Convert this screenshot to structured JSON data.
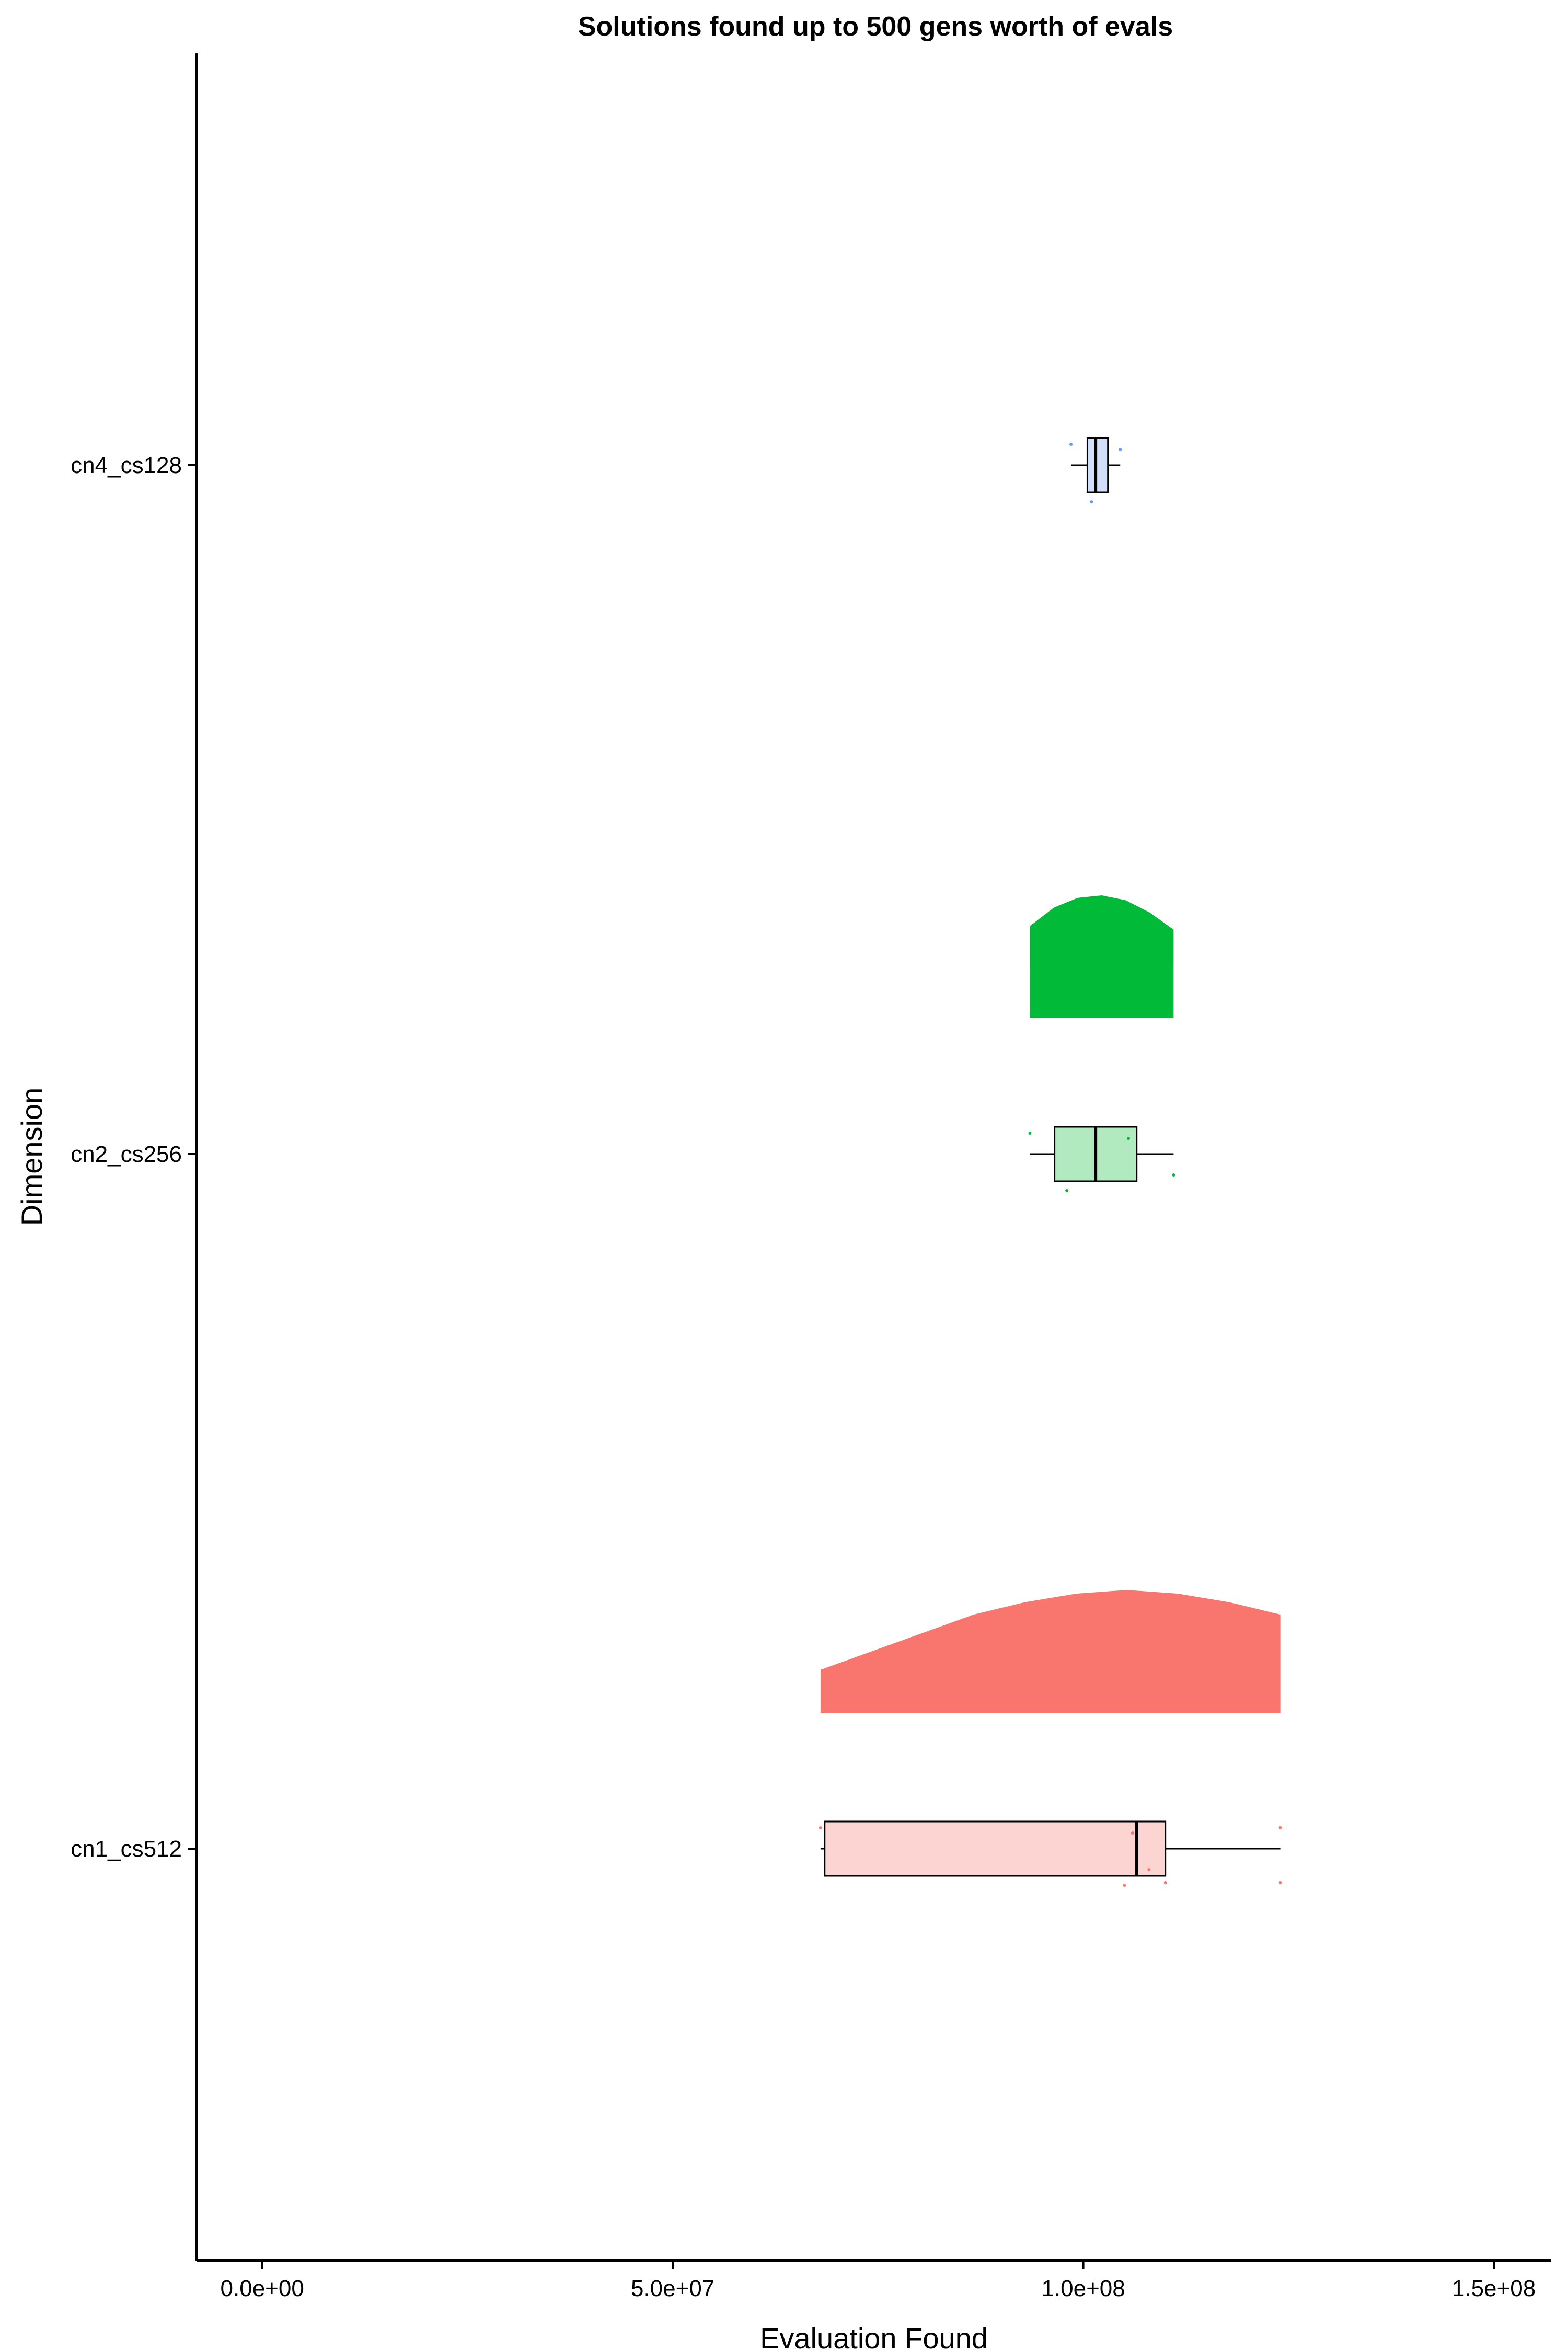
{
  "chart_data": {
    "type": "raincloud",
    "title": "Solutions found up to 500 gens worth of evals",
    "xlabel": "Evaluation Found",
    "ylabel": "Dimension",
    "xlim": [
      -8000000,
      157000000
    ],
    "x_ticks": [
      0,
      50000000,
      100000000,
      150000000
    ],
    "x_tick_labels": [
      "0.0e+00",
      "5.0e+07",
      "1.0e+08",
      "1.5e+08"
    ],
    "grid": false,
    "legend": "none",
    "categories": [
      "cn1_cs512",
      "cn2_cs256",
      "cn4_cs128"
    ],
    "series": [
      {
        "category": "cn1_cs512",
        "color": "#F8766D",
        "box_fill": "#FCD5D3",
        "box": {
          "whisker_low": 68000000,
          "q1": 68500000,
          "median": 106500000,
          "q3": 110000000,
          "whisker_high": 124000000
        },
        "points": [
          68000000,
          105000000,
          106000000,
          108000000,
          110000000,
          124000000,
          124000000
        ],
        "density_range": [
          68000000,
          124000000
        ],
        "density": [
          0.35,
          0.5,
          0.65,
          0.8,
          0.9,
          0.97,
          1.0,
          0.97,
          0.9,
          0.8
        ]
      },
      {
        "category": "cn2_cs256",
        "color": "#00BA38",
        "box_fill": "#B2EABF",
        "box": {
          "whisker_low": 93500000,
          "q1": 96500000,
          "median": 101500000,
          "q3": 106500000,
          "whisker_high": 111000000
        },
        "points": [
          93500000,
          98000000,
          105500000,
          111000000
        ],
        "density_range": [
          93500000,
          111000000
        ],
        "density": [
          0.75,
          0.9,
          0.98,
          1.0,
          0.96,
          0.86,
          0.72
        ]
      },
      {
        "category": "cn4_cs128",
        "color": "#619CFF",
        "box_fill": "#D0E0FA",
        "box": {
          "whisker_low": 98500000,
          "q1": 100500000,
          "median": 101500000,
          "q3": 103000000,
          "whisker_high": 104500000
        },
        "points": [
          98500000,
          101000000,
          104500000
        ],
        "density_range": null,
        "density": []
      }
    ]
  }
}
